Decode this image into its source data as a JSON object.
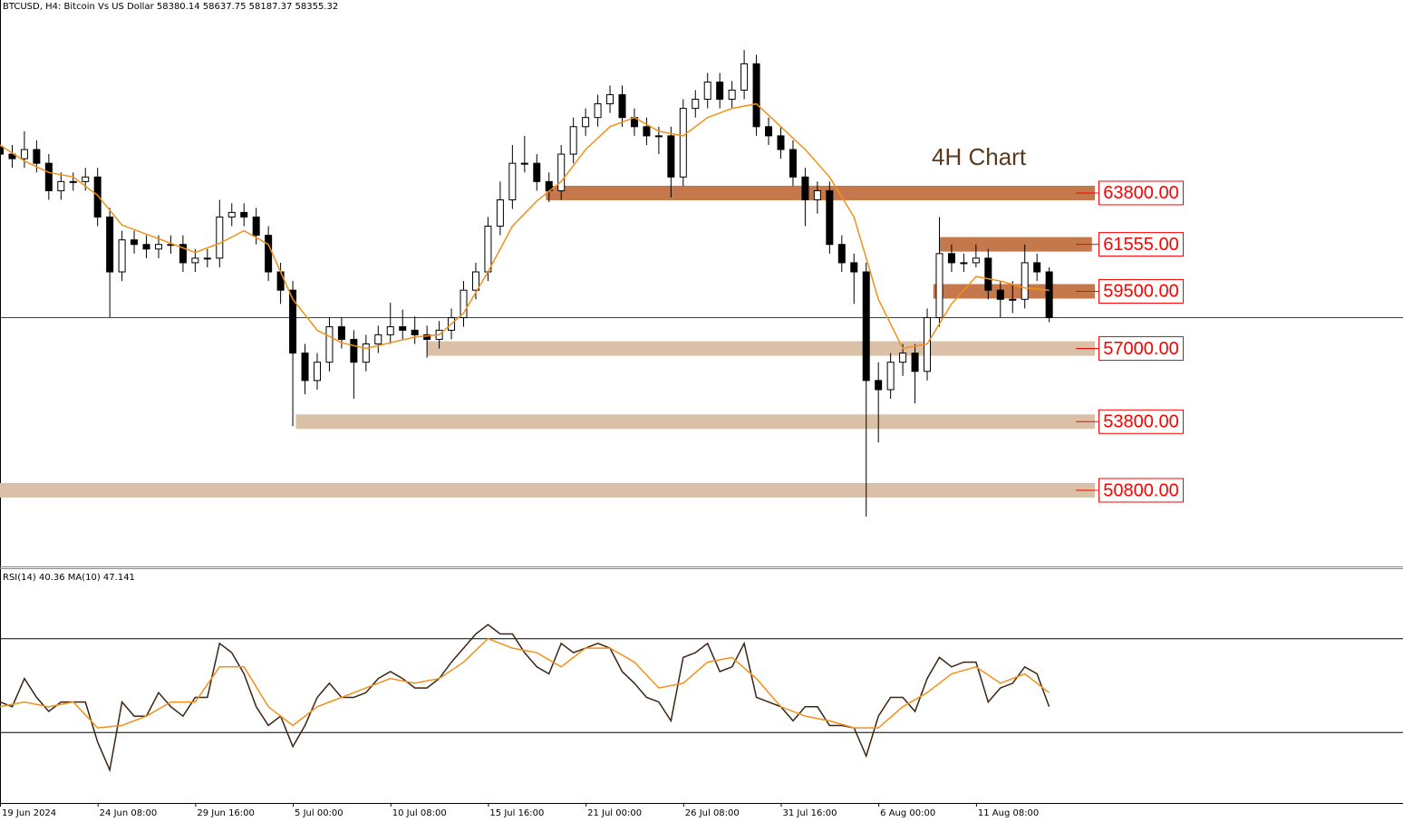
{
  "chart_data": [
    {
      "type": "candlestick",
      "title": "BTCUSD, H4:  Bitcoin Vs US Dollar  58380.14 58637.75 58187.37 58355.32",
      "annotation": "4H Chart",
      "candle_color": "#000000",
      "x": [
        0,
        4,
        8,
        12,
        16,
        20,
        24,
        28,
        32,
        36,
        40,
        44,
        48,
        52,
        56,
        60,
        64,
        68,
        72,
        76,
        80,
        84,
        88,
        92,
        96,
        100,
        104,
        108,
        112,
        116,
        120,
        124,
        128,
        132,
        136,
        140,
        144,
        148,
        152,
        156,
        160,
        164,
        168,
        172,
        176,
        180,
        184,
        188,
        192,
        196,
        200,
        204,
        208,
        212,
        216,
        220,
        224,
        228,
        232,
        236,
        240,
        244,
        248,
        252,
        256,
        260,
        264,
        268,
        272,
        276,
        280,
        284,
        288,
        292,
        296,
        300,
        304,
        308,
        312,
        316,
        320,
        324,
        328,
        332,
        336,
        340,
        344
      ],
      "open": [
        65800,
        65500,
        65300,
        65700,
        65100,
        63900,
        64300,
        64300,
        64500,
        62750,
        60350,
        61750,
        61550,
        61350,
        61550,
        61550,
        60750,
        60950,
        60950,
        62750,
        62950,
        62750,
        61950,
        60350,
        59550,
        56800,
        55600,
        56400,
        57950,
        57400,
        56400,
        57200,
        57600,
        57950,
        57800,
        57600,
        57400,
        57800,
        58350,
        59550,
        60350,
        62350,
        63500,
        65100,
        65100,
        64300,
        63900,
        65500,
        66700,
        67100,
        67700,
        68100,
        67100,
        66700,
        66300,
        66300,
        64500,
        67500,
        67900,
        68650,
        67900,
        68300,
        69450,
        66700,
        66300,
        65700,
        64500,
        63500,
        63900,
        61550,
        60750,
        60350,
        55600,
        55200,
        56400,
        56800,
        56000,
        58350,
        61150,
        60750,
        60750,
        60950,
        59550,
        59150,
        59150,
        60750,
        60350
      ],
      "high": [
        66200,
        65900,
        66500,
        66100,
        65500,
        64700,
        64700,
        64900,
        64900,
        63150,
        62150,
        62150,
        61950,
        61950,
        61950,
        61950,
        61350,
        61350,
        63500,
        63350,
        63350,
        63150,
        62350,
        60750,
        59950,
        57200,
        56800,
        58350,
        58350,
        57800,
        57600,
        58000,
        59000,
        58700,
        58400,
        58000,
        58200,
        58750,
        59950,
        60750,
        62750,
        64300,
        65900,
        66300,
        65500,
        64700,
        65900,
        67100,
        67500,
        68100,
        68500,
        68500,
        67500,
        67100,
        66700,
        66700,
        67900,
        68300,
        69050,
        69050,
        68700,
        70050,
        69850,
        67100,
        66700,
        66100,
        64900,
        64300,
        64300,
        61950,
        61150,
        60750,
        56400,
        56800,
        57200,
        57200,
        58750,
        62750,
        61550,
        61150,
        61550,
        61350,
        59950,
        59950,
        61550,
        61150,
        60550
      ],
      "low": [
        65100,
        64900,
        64900,
        64700,
        63500,
        63500,
        63900,
        63900,
        62350,
        58350,
        59950,
        61150,
        60950,
        60950,
        61150,
        60350,
        60350,
        60550,
        60550,
        62350,
        62350,
        61550,
        59950,
        58950,
        53600,
        55000,
        55200,
        56000,
        57000,
        54800,
        56000,
        56800,
        57200,
        57400,
        57200,
        56600,
        57000,
        57400,
        57950,
        59150,
        59950,
        61950,
        63100,
        64700,
        63900,
        63400,
        63500,
        65100,
        66300,
        66700,
        67300,
        66700,
        66300,
        65900,
        65500,
        63600,
        64100,
        67100,
        67500,
        67500,
        67500,
        67900,
        66300,
        65900,
        65300,
        64100,
        62350,
        62900,
        61150,
        60350,
        58950,
        49650,
        52900,
        54800,
        55800,
        54600,
        55600,
        57950,
        60350,
        60350,
        60550,
        59150,
        58350,
        58550,
        58750,
        59950,
        58150
      ],
      "close": [
        65500,
        65300,
        65700,
        65100,
        63900,
        64300,
        64300,
        64500,
        62750,
        60350,
        61750,
        61550,
        61350,
        61550,
        61550,
        60750,
        60950,
        60950,
        62750,
        62950,
        62750,
        61950,
        60350,
        59550,
        56800,
        55600,
        56400,
        57950,
        57400,
        56400,
        57200,
        57600,
        57950,
        57800,
        57600,
        57400,
        57800,
        58350,
        59550,
        60350,
        62350,
        63500,
        65100,
        65100,
        64300,
        63900,
        65500,
        66700,
        67100,
        67700,
        68100,
        67100,
        66700,
        66300,
        66300,
        64500,
        67500,
        67900,
        68650,
        67900,
        68300,
        69450,
        66700,
        66300,
        65700,
        64500,
        63500,
        63900,
        61550,
        60750,
        60350,
        55600,
        55200,
        56400,
        56800,
        56000,
        58350,
        61150,
        60750,
        60750,
        60950,
        59550,
        59150,
        59150,
        60750,
        60350,
        58350
      ],
      "series": [
        {
          "color": "#f39019",
          "x": [
            0,
            8,
            16,
            24,
            32,
            40,
            48,
            56,
            64,
            72,
            80,
            88,
            96,
            104,
            112,
            120,
            128,
            136,
            144,
            152,
            160,
            168,
            176,
            184,
            192,
            200,
            208,
            216,
            224,
            232,
            240,
            248,
            256,
            264,
            272,
            280,
            288,
            296,
            304,
            312,
            320,
            328,
            336,
            344
          ],
          "values": [
            65900,
            65200,
            64700,
            64500,
            63700,
            62400,
            62000,
            61600,
            61200,
            61600,
            62150,
            61550,
            59150,
            57800,
            57250,
            57000,
            57250,
            57500,
            57600,
            58550,
            60350,
            62350,
            63450,
            64300,
            65700,
            66700,
            67100,
            66500,
            66300,
            67100,
            67500,
            67700,
            66700,
            65700,
            64500,
            62750,
            59150,
            57000,
            57200,
            58950,
            60150,
            59950,
            59650,
            59550
          ]
        }
      ],
      "levels": [
        {
          "value": 63800,
          "label": "63800.00",
          "x_start": 179,
          "x_end": 359,
          "color": "#c5784b"
        },
        {
          "value": 61555,
          "label": "61555.00",
          "x_start": 308,
          "x_end": 358,
          "color": "#c5784b"
        },
        {
          "value": 59500,
          "label": "59500.00",
          "x_start": 306,
          "x_end": 359,
          "color": "#c5784b"
        },
        {
          "value": 57000,
          "label": "57000.00",
          "x_start": 140,
          "x_end": 359,
          "color": "#d9c0a6"
        },
        {
          "value": 53800,
          "label": "53800.00",
          "x_start": 97,
          "x_end": 359,
          "color": "#d9c0a6"
        },
        {
          "value": 50800,
          "label": "50800.00",
          "x_start": 0,
          "x_end": 359,
          "color": "#d9c0a6"
        }
      ],
      "last_price": 58355.32,
      "xlim": [
        0,
        460
      ],
      "ylim": [
        47470,
        72240
      ]
    },
    {
      "type": "line",
      "label": "RSI(14) 40.36 MA(10) 47.141",
      "color": "#3b2413",
      "x": [
        0,
        4,
        8,
        12,
        16,
        20,
        24,
        28,
        32,
        36,
        40,
        44,
        48,
        52,
        56,
        60,
        64,
        68,
        72,
        76,
        80,
        84,
        88,
        92,
        96,
        100,
        104,
        108,
        112,
        116,
        120,
        124,
        128,
        132,
        136,
        140,
        144,
        148,
        152,
        156,
        160,
        164,
        168,
        172,
        176,
        180,
        184,
        188,
        192,
        196,
        200,
        204,
        208,
        212,
        216,
        220,
        224,
        228,
        232,
        236,
        240,
        244,
        248,
        252,
        256,
        260,
        264,
        268,
        272,
        276,
        280,
        284,
        288,
        292,
        296,
        300,
        304,
        308,
        312,
        316,
        320,
        324,
        328,
        332,
        336,
        340,
        344
      ],
      "values": [
        43,
        41,
        53,
        45,
        39,
        43,
        43,
        43,
        26,
        14,
        43,
        37,
        37,
        47,
        41,
        37,
        45,
        45,
        68,
        64,
        55,
        41,
        33,
        37,
        24,
        33,
        45,
        51,
        45,
        45,
        47,
        53,
        56,
        53,
        49,
        49,
        53,
        60,
        66,
        72,
        76,
        72,
        72,
        64,
        58,
        55,
        68,
        64,
        66,
        68,
        66,
        56,
        51,
        45,
        43,
        35,
        62,
        64,
        68,
        56,
        58,
        68,
        45,
        43,
        41,
        35,
        41,
        41,
        33,
        33,
        32,
        20,
        37,
        45,
        45,
        39,
        53,
        62,
        58,
        60,
        60,
        43,
        49,
        51,
        58,
        55,
        41
      ],
      "series": [
        {
          "color": "#f39019",
          "x": [
            0,
            8,
            16,
            24,
            32,
            40,
            48,
            56,
            64,
            72,
            80,
            88,
            96,
            104,
            112,
            120,
            128,
            136,
            144,
            152,
            160,
            168,
            176,
            184,
            192,
            200,
            208,
            216,
            224,
            232,
            240,
            248,
            256,
            264,
            272,
            280,
            288,
            296,
            304,
            312,
            320,
            328,
            336,
            344
          ],
          "values": [
            41,
            43,
            41,
            43,
            32,
            33,
            37,
            43,
            43,
            58,
            58,
            41,
            33,
            41,
            45,
            49,
            53,
            51,
            53,
            60,
            70,
            66,
            64,
            58,
            66,
            66,
            60,
            49,
            51,
            60,
            62,
            53,
            41,
            37,
            35,
            32,
            32,
            41,
            47,
            55,
            58,
            51,
            55,
            47
          ]
        }
      ],
      "levels": [
        70,
        30
      ],
      "xlim": [
        0,
        460
      ],
      "ylim": [
        0,
        100
      ],
      "xticks": [
        {
          "value": 0,
          "label": "19 Jun 2024"
        },
        {
          "value": 32,
          "label": "24 Jun 08:00"
        },
        {
          "value": 64,
          "label": "29 Jun 16:00"
        },
        {
          "value": 96,
          "label": "5 Jul 00:00"
        },
        {
          "value": 128,
          "label": "10 Jul 08:00"
        },
        {
          "value": 160,
          "label": "15 Jul 16:00"
        },
        {
          "value": 192,
          "label": "21 Jul 00:00"
        },
        {
          "value": 224,
          "label": "26 Jul 08:00"
        },
        {
          "value": 256,
          "label": "31 Jul 16:00"
        },
        {
          "value": 288,
          "label": "6 Aug 00:00"
        },
        {
          "value": 320,
          "label": "11 Aug 08:00"
        }
      ]
    }
  ]
}
